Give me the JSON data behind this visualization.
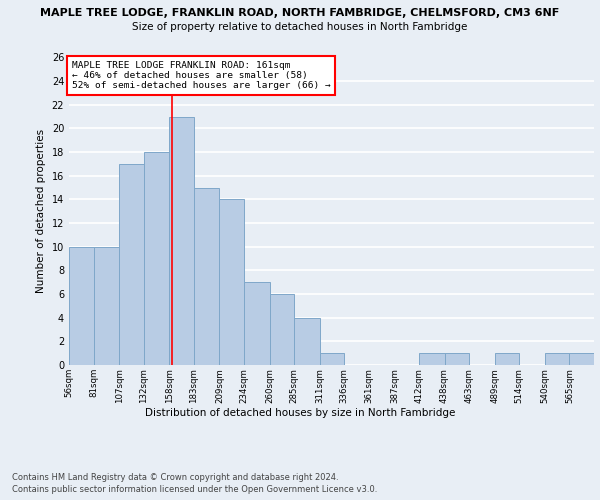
{
  "title_line1": "MAPLE TREE LODGE, FRANKLIN ROAD, NORTH FAMBRIDGE, CHELMSFORD, CM3 6NF",
  "title_line2": "Size of property relative to detached houses in North Fambridge",
  "xlabel": "Distribution of detached houses by size in North Fambridge",
  "ylabel": "Number of detached properties",
  "bin_labels": [
    "56sqm",
    "81sqm",
    "107sqm",
    "132sqm",
    "158sqm",
    "183sqm",
    "209sqm",
    "234sqm",
    "260sqm",
    "285sqm",
    "311sqm",
    "336sqm",
    "361sqm",
    "387sqm",
    "412sqm",
    "438sqm",
    "463sqm",
    "489sqm",
    "514sqm",
    "540sqm",
    "565sqm"
  ],
  "bin_values": [
    10,
    10,
    17,
    18,
    21,
    15,
    14,
    7,
    6,
    4,
    1,
    0,
    0,
    0,
    1,
    1,
    0,
    1,
    0,
    1,
    1
  ],
  "bar_color": "#b8cce4",
  "bar_edge_color": "#7fa7c9",
  "vline_x": 161,
  "vline_color": "red",
  "ylim": [
    0,
    26
  ],
  "yticks": [
    0,
    2,
    4,
    6,
    8,
    10,
    12,
    14,
    16,
    18,
    20,
    22,
    24,
    26
  ],
  "annotation_text": "MAPLE TREE LODGE FRANKLIN ROAD: 161sqm\n← 46% of detached houses are smaller (58)\n52% of semi-detached houses are larger (66) →",
  "annotation_box_color": "white",
  "annotation_box_edgecolor": "red",
  "footnote1": "Contains HM Land Registry data © Crown copyright and database right 2024.",
  "footnote2": "Contains public sector information licensed under the Open Government Licence v3.0.",
  "bg_color": "#e8eef5",
  "plot_bg_color": "#e8eef5",
  "grid_color": "white",
  "bin_starts": [
    56,
    81,
    107,
    132,
    158,
    183,
    209,
    234,
    260,
    285,
    311,
    336,
    361,
    387,
    412,
    438,
    463,
    489,
    514,
    540,
    565
  ]
}
